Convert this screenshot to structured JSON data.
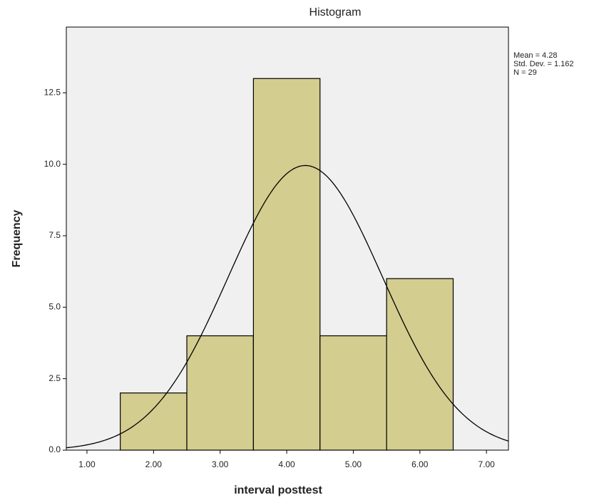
{
  "chart_data": {
    "type": "histogram",
    "title": "Histogram",
    "x_label": "interval posttest",
    "y_label": "Frequency",
    "bins": [
      1.5,
      2.5,
      3.5,
      4.5,
      5.5,
      6.5
    ],
    "counts": [
      2,
      4,
      13,
      4,
      6
    ],
    "color": "#d3cd8f",
    "xlim": [
      0.69,
      7.33
    ],
    "xticks": [
      {
        "value": 1,
        "label": "1.00"
      },
      {
        "value": 2,
        "label": "2.00"
      },
      {
        "value": 3,
        "label": "3.00"
      },
      {
        "value": 4,
        "label": "4.00"
      },
      {
        "value": 5,
        "label": "5.00"
      },
      {
        "value": 6,
        "label": "6.00"
      },
      {
        "value": 7,
        "label": "7.00"
      }
    ],
    "ylim": [
      0,
      14.8
    ],
    "yticks": [
      {
        "value": 0,
        "label": "0.0"
      },
      2.5,
      {
        "value": 5,
        "label": "5.0"
      },
      7.5,
      {
        "value": 10,
        "label": "10.0"
      },
      12.5
    ],
    "normal_curve": {
      "mean": 4.28,
      "std": 1.162,
      "n": 29
    },
    "annotations": [
      "Mean = 4.28",
      "Std. Dev. = 1.162",
      "N = 29"
    ]
  }
}
